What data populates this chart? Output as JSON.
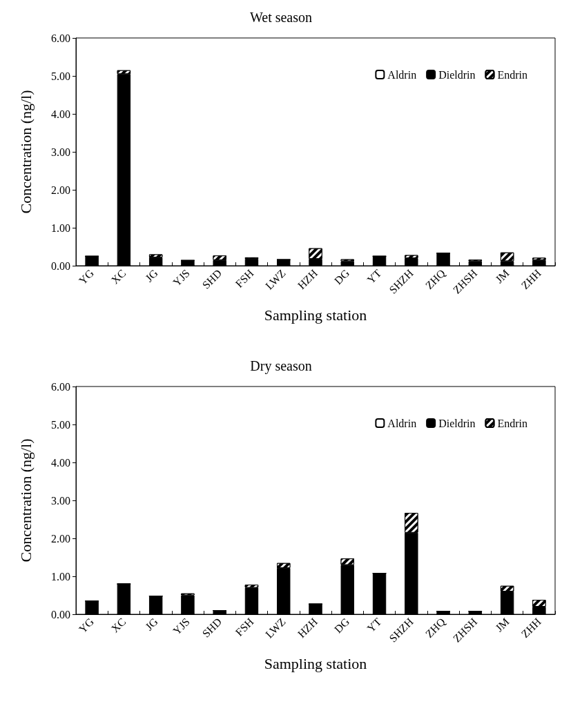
{
  "chart_data": [
    {
      "type": "bar",
      "title": "Wet season",
      "xlabel": "Sampling station",
      "ylabel": "Concentration (ng/l)",
      "stacked": true,
      "categories": [
        "YG",
        "XC",
        "JG",
        "YJS",
        "SHD",
        "FSH",
        "LWZ",
        "HZH",
        "DG",
        "YT",
        "SHZH",
        "ZHQ",
        "ZHSH",
        "JM",
        "ZHH"
      ],
      "series": [
        {
          "name": "Aldrin",
          "color": "#ffffff",
          "values": [
            0,
            0,
            0,
            0,
            0,
            0,
            0,
            null,
            null,
            0,
            null,
            0,
            0,
            0,
            0
          ]
        },
        {
          "name": "Dieldrin",
          "color": "#000000",
          "values": [
            0.25,
            5.05,
            0.22,
            0.14,
            0.15,
            0.18,
            0.16,
            0.18,
            0.12,
            0.25,
            0.2,
            0.33,
            0.12,
            0.12,
            0.15
          ]
        },
        {
          "name": "Endrin",
          "color": "#000000",
          "values": [
            0,
            0.1,
            0.08,
            0,
            0.12,
            0.04,
            0,
            0.28,
            0.05,
            0,
            0.08,
            0,
            0.04,
            0.23,
            0.06
          ]
        }
      ],
      "ylim": [
        0,
        6
      ],
      "yticks": [
        {
          "value": 0,
          "label": "0.00"
        },
        {
          "value": 1,
          "label": "1.00"
        },
        {
          "value": 2,
          "label": "2.00"
        },
        {
          "value": 3,
          "label": "3.00"
        },
        {
          "value": 4,
          "label": "4.00"
        },
        {
          "value": 5,
          "label": "5.00"
        },
        {
          "value": 6,
          "label": "6.00"
        }
      ],
      "grid": false,
      "legend": "top right"
    },
    {
      "type": "bar",
      "title": "Dry season",
      "xlabel": "Sampling station",
      "ylabel": "Concentration (ng/l)",
      "stacked": true,
      "categories": [
        "YG",
        "XC",
        "JG",
        "YJS",
        "SHD",
        "FSH",
        "LWZ",
        "HZH",
        "DG",
        "YT",
        "SHZH",
        "ZHQ",
        "ZHSH",
        "JM",
        "ZHH"
      ],
      "series": [
        {
          "name": "Aldrin",
          "color": "#ffffff",
          "values": [
            0,
            0,
            0,
            0,
            0,
            0,
            0,
            0,
            0,
            0,
            0,
            0,
            0,
            0,
            0
          ]
        },
        {
          "name": "Dieldrin",
          "color": "#000000",
          "values": [
            0.35,
            0.8,
            0.48,
            0.5,
            0.1,
            0.7,
            1.22,
            0.27,
            1.3,
            1.08,
            2.15,
            0.08,
            0.08,
            0.6,
            0.2
          ]
        },
        {
          "name": "Endrin",
          "color": "#000000",
          "values": [
            0,
            0,
            0,
            0.05,
            0,
            0.08,
            0.13,
            0,
            0.17,
            0,
            0.52,
            0,
            0,
            0.15,
            0.18
          ]
        }
      ],
      "ylim": [
        0,
        6
      ],
      "yticks": [
        {
          "value": 0,
          "label": "0.00"
        },
        {
          "value": 1,
          "label": "1.00"
        },
        {
          "value": 2,
          "label": "2.00"
        },
        {
          "value": 3,
          "label": "3.00"
        },
        {
          "value": 4,
          "label": "4.00"
        },
        {
          "value": 5,
          "label": "5.00"
        },
        {
          "value": 6,
          "label": "6.00"
        }
      ],
      "grid": false,
      "legend": "top right"
    }
  ]
}
